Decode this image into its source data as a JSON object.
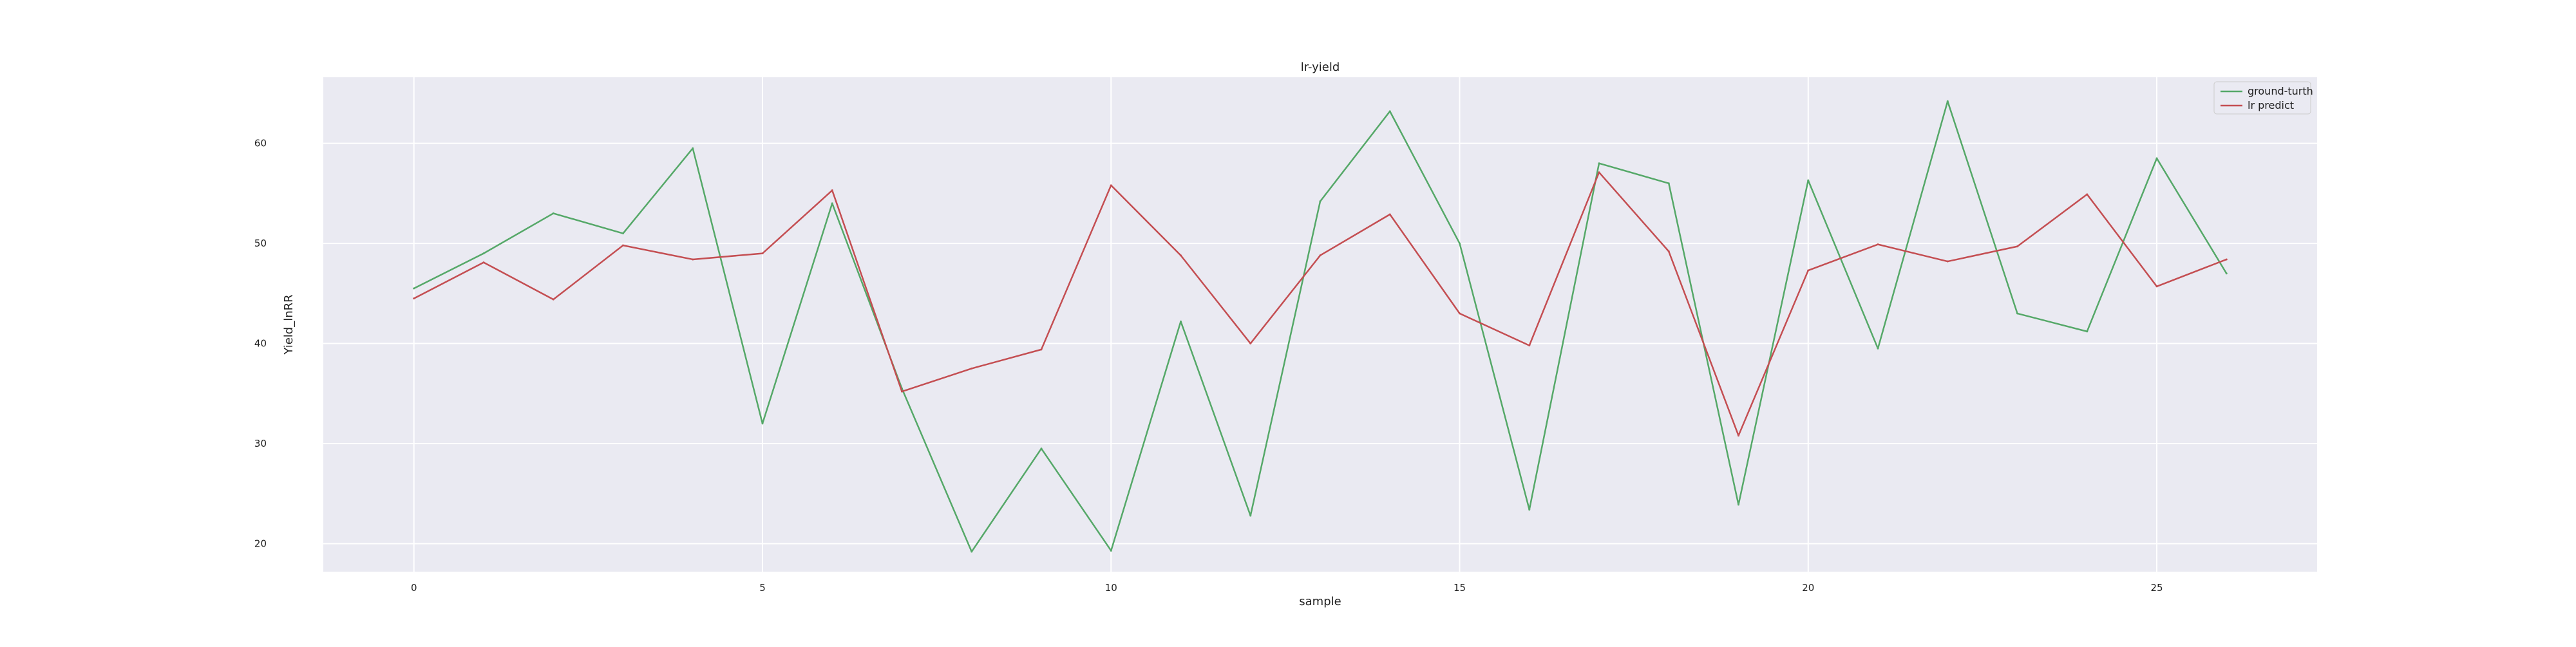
{
  "chart_data": {
    "type": "line",
    "title": "lr-yield",
    "xlabel": "sample",
    "ylabel": "Yield_lnRR",
    "x": [
      0,
      1,
      2,
      3,
      4,
      5,
      6,
      7,
      8,
      9,
      10,
      11,
      12,
      13,
      14,
      15,
      16,
      17,
      18,
      19,
      20,
      21,
      22,
      23,
      24,
      25,
      26
    ],
    "series": [
      {
        "name": "ground-turth",
        "color": "#55a868",
        "values": [
          45.5,
          49.0,
          53.0,
          51.0,
          59.5,
          32.0,
          54.0,
          35.5,
          19.2,
          29.5,
          19.3,
          42.2,
          22.8,
          54.2,
          63.2,
          50.0,
          23.4,
          58.0,
          56.0,
          23.9,
          56.3,
          39.5,
          64.2,
          43.0,
          41.2,
          58.5,
          47.0
        ]
      },
      {
        "name": "lr predict",
        "color": "#c44e52",
        "values": [
          44.5,
          48.1,
          44.4,
          49.8,
          48.4,
          49.0,
          55.3,
          35.2,
          37.5,
          39.4,
          55.8,
          48.8,
          40.0,
          48.8,
          52.9,
          43.0,
          39.8,
          57.1,
          49.2,
          30.8,
          47.3,
          49.9,
          48.2,
          49.7,
          54.9,
          45.7,
          48.4
        ]
      }
    ],
    "xticks": [
      0,
      5,
      10,
      15,
      20,
      25
    ],
    "yticks": [
      20,
      30,
      40,
      50,
      60
    ],
    "xlim": [
      -1.3,
      27.3
    ],
    "ylim": [
      17.2,
      66.6
    ],
    "grid": true,
    "legend_position": "top-right",
    "background_color": "#eaeaf2",
    "grid_color": "#ffffff"
  }
}
